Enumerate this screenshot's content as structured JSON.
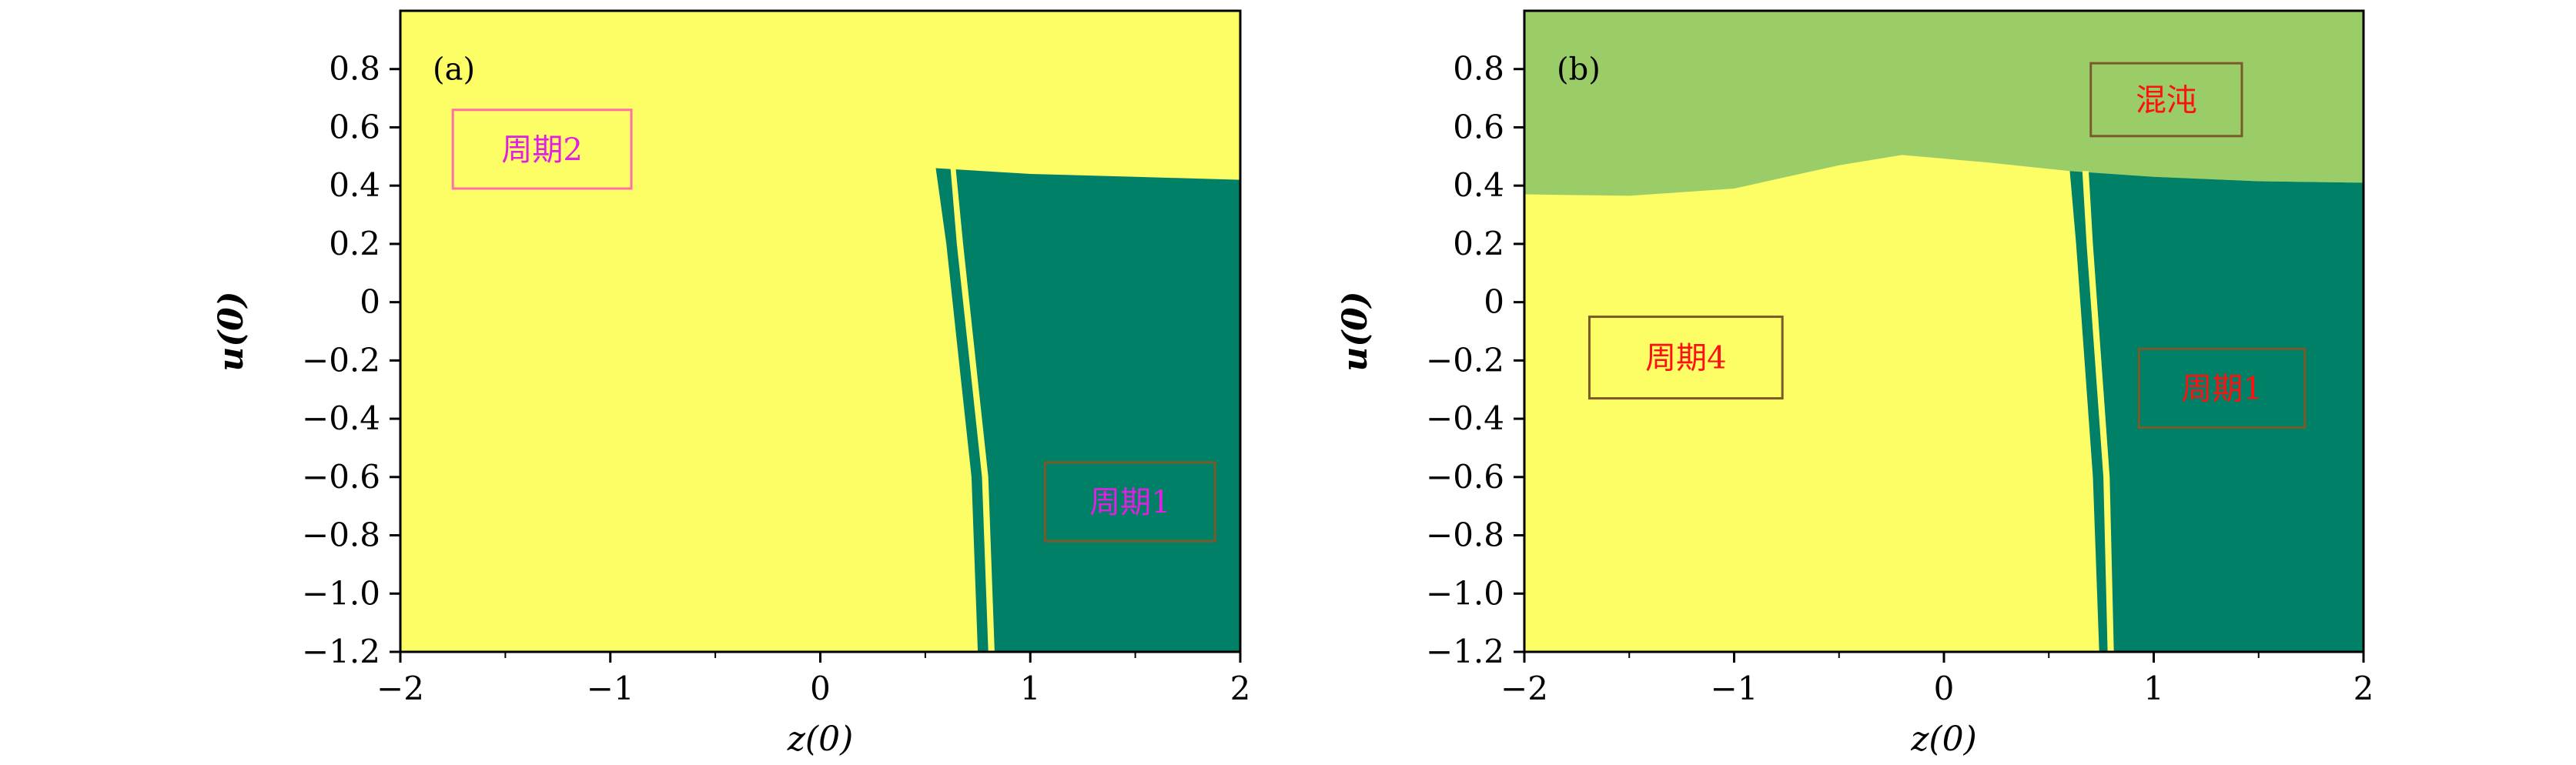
{
  "colors": {
    "yellow": "#fdfd66",
    "teal": "#008066",
    "lightgreen": "#9acd68",
    "pink_box": "#ff6fa8",
    "brown_box": "#7a5a2a",
    "magenta_text": "#e020e0",
    "red_text": "#ff1010"
  },
  "chart_data": [
    {
      "type": "heatmap",
      "panel_label": "(a)",
      "xlabel": "z(0)",
      "ylabel": "u(0)",
      "xlim": [
        -2,
        2
      ],
      "ylim": [
        -1.2,
        1.0
      ],
      "xticks": [
        -2,
        -1,
        0,
        1,
        2
      ],
      "xtick_labels": [
        "−2",
        "−1",
        "0",
        "1",
        "2"
      ],
      "yticks": [
        -1.2,
        -1.0,
        -0.8,
        -0.6,
        -0.4,
        -0.2,
        0,
        0.2,
        0.4,
        0.6,
        0.8
      ],
      "ytick_labels": [
        "−1.2",
        "−1.0",
        "−0.8",
        "−0.6",
        "−0.4",
        "−0.2",
        "0",
        "0.2",
        "0.4",
        "0.6",
        "0.8"
      ],
      "background_region": "yellow",
      "regions": [
        {
          "color": "teal",
          "points": [
            [
              0.55,
              0.46
            ],
            [
              1.0,
              0.44
            ],
            [
              1.5,
              0.43
            ],
            [
              2,
              0.42
            ],
            [
              2,
              -1.2
            ],
            [
              0.75,
              -1.2
            ],
            [
              0.72,
              -0.6
            ],
            [
              0.66,
              -0.2
            ],
            [
              0.6,
              0.2
            ]
          ]
        }
      ],
      "stripes": [
        {
          "color": "yellow",
          "points": [
            [
              0.62,
              0.46
            ],
            [
              0.65,
              0.2
            ],
            [
              0.71,
              -0.2
            ],
            [
              0.77,
              -0.6
            ],
            [
              0.8,
              -1.2
            ],
            [
              0.83,
              -1.2
            ],
            [
              0.8,
              -0.6
            ],
            [
              0.74,
              -0.2
            ],
            [
              0.68,
              0.2
            ],
            [
              0.645,
              0.46
            ]
          ]
        }
      ],
      "annotations": [
        {
          "text": "周期2",
          "box": [
            -1.75,
            0.66,
            -0.9,
            0.39
          ],
          "border": "pink_box",
          "text_color": "magenta_text"
        },
        {
          "text": "周期1",
          "box": [
            1.07,
            -0.55,
            1.88,
            -0.82
          ],
          "border": "brown_box",
          "text_color": "magenta_text"
        }
      ]
    },
    {
      "type": "heatmap",
      "panel_label": "(b)",
      "xlabel": "z(0)",
      "ylabel": "u(0)",
      "xlim": [
        -2,
        2
      ],
      "ylim": [
        -1.2,
        1.0
      ],
      "xticks": [
        -2,
        -1,
        0,
        1,
        2
      ],
      "xtick_labels": [
        "−2",
        "−1",
        "0",
        "1",
        "2"
      ],
      "yticks": [
        -1.2,
        -1.0,
        -0.8,
        -0.6,
        -0.4,
        -0.2,
        0,
        0.2,
        0.4,
        0.6,
        0.8
      ],
      "ytick_labels": [
        "−1.2",
        "−1.0",
        "−0.8",
        "−0.6",
        "−0.4",
        "−0.2",
        "0",
        "0.2",
        "0.4",
        "0.6",
        "0.8"
      ],
      "background_region": "yellow",
      "regions": [
        {
          "color": "lightgreen",
          "points": [
            [
              -2,
              1.0
            ],
            [
              2,
              1.0
            ],
            [
              2,
              0.41
            ],
            [
              1.5,
              0.415
            ],
            [
              1.0,
              0.43
            ],
            [
              0.6,
              0.45
            ],
            [
              0.2,
              0.48
            ],
            [
              -0.2,
              0.505
            ],
            [
              -0.5,
              0.47
            ],
            [
              -1.0,
              0.39
            ],
            [
              -1.5,
              0.365
            ],
            [
              -2,
              0.37
            ]
          ]
        },
        {
          "color": "teal",
          "points": [
            [
              0.6,
              0.45
            ],
            [
              1.0,
              0.43
            ],
            [
              1.5,
              0.415
            ],
            [
              2,
              0.41
            ],
            [
              2,
              -1.2
            ],
            [
              0.74,
              -1.2
            ],
            [
              0.71,
              -0.6
            ],
            [
              0.67,
              -0.2
            ],
            [
              0.63,
              0.2
            ]
          ]
        }
      ],
      "stripes": [
        {
          "color": "yellow",
          "points": [
            [
              0.66,
              0.45
            ],
            [
              0.68,
              0.2
            ],
            [
              0.72,
              -0.2
            ],
            [
              0.76,
              -0.6
            ],
            [
              0.78,
              -1.2
            ],
            [
              0.81,
              -1.2
            ],
            [
              0.79,
              -0.6
            ],
            [
              0.75,
              -0.2
            ],
            [
              0.71,
              0.2
            ],
            [
              0.69,
              0.45
            ]
          ]
        }
      ],
      "annotations": [
        {
          "text": "混沌",
          "box": [
            0.7,
            0.82,
            1.42,
            0.57
          ],
          "border": "brown_box",
          "text_color": "red_text"
        },
        {
          "text": "周期4",
          "box": [
            -1.69,
            -0.05,
            -0.77,
            -0.33
          ],
          "border": "brown_box",
          "text_color": "red_text"
        },
        {
          "text": "周期1",
          "box": [
            0.93,
            -0.16,
            1.72,
            -0.43
          ],
          "border": "brown_box",
          "text_color": "red_text"
        }
      ]
    }
  ]
}
